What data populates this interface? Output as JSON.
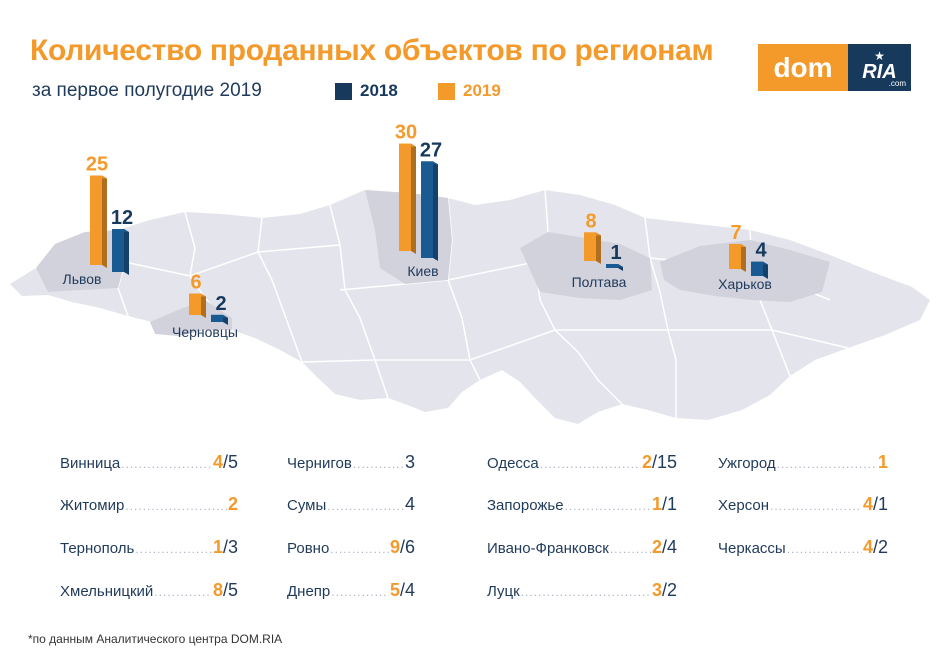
{
  "title": "Количество проданных объектов по регионам",
  "subtitle": "за первое полугодие 2019",
  "legend": [
    {
      "label": "2018",
      "color": "#17395c"
    },
    {
      "label": "2019",
      "color": "#f39a2b"
    }
  ],
  "logo": {
    "left": "dom",
    "right": "RIA",
    "suffix": ".com",
    "star": "★"
  },
  "colors": {
    "y2018": "#1a5a93",
    "y2019": "#f39a2b",
    "title": "#f39a2b",
    "text": "#1f3a5a",
    "map": "#e4e4ec"
  },
  "chart_data": {
    "type": "bar",
    "title": "Количество проданных объектов по регионам",
    "subtitle": "за первое полугодие 2019",
    "series_names": [
      "2019",
      "2018"
    ],
    "regions": [
      {
        "name": "Львов",
        "y2019": 25,
        "y2018": 12
      },
      {
        "name": "Черновцы",
        "y2019": 6,
        "y2018": 2
      },
      {
        "name": "Киев",
        "y2019": 30,
        "y2018": 27
      },
      {
        "name": "Полтава",
        "y2019": 8,
        "y2018": 1
      },
      {
        "name": "Харьков",
        "y2019": 7,
        "y2018": 4
      }
    ],
    "table": [
      {
        "name": "Винница",
        "y2019": "4",
        "y2018": "5"
      },
      {
        "name": "Житомир",
        "y2019": "2",
        "y2018": ""
      },
      {
        "name": "Тернополь",
        "y2019": "1",
        "y2018": "3"
      },
      {
        "name": "Хмельницкий",
        "y2019": "8",
        "y2018": "5"
      },
      {
        "name": "Чернигов",
        "y2019": "",
        "y2018": "3"
      },
      {
        "name": "Сумы",
        "y2019": "",
        "y2018": "4"
      },
      {
        "name": "Ровно",
        "y2019": "9",
        "y2018": "6"
      },
      {
        "name": "Днепр",
        "y2019": "5",
        "y2018": "4"
      },
      {
        "name": "Одесса",
        "y2019": "2",
        "y2018": "15"
      },
      {
        "name": "Запорожье",
        "y2019": "1",
        "y2018": "1"
      },
      {
        "name": "Ивано-Франковск",
        "y2019": "2",
        "y2018": "4"
      },
      {
        "name": "Луцк",
        "y2019": "3",
        "y2018": "2"
      },
      {
        "name": "Ужгород",
        "y2019": "1",
        "y2018": ""
      },
      {
        "name": "Херсон",
        "y2019": "4",
        "y2018": "1"
      },
      {
        "name": "Черкассы",
        "y2019": "4",
        "y2018": "2"
      }
    ]
  },
  "footnote": "*по данным Аналитического центра DOM.RIA"
}
